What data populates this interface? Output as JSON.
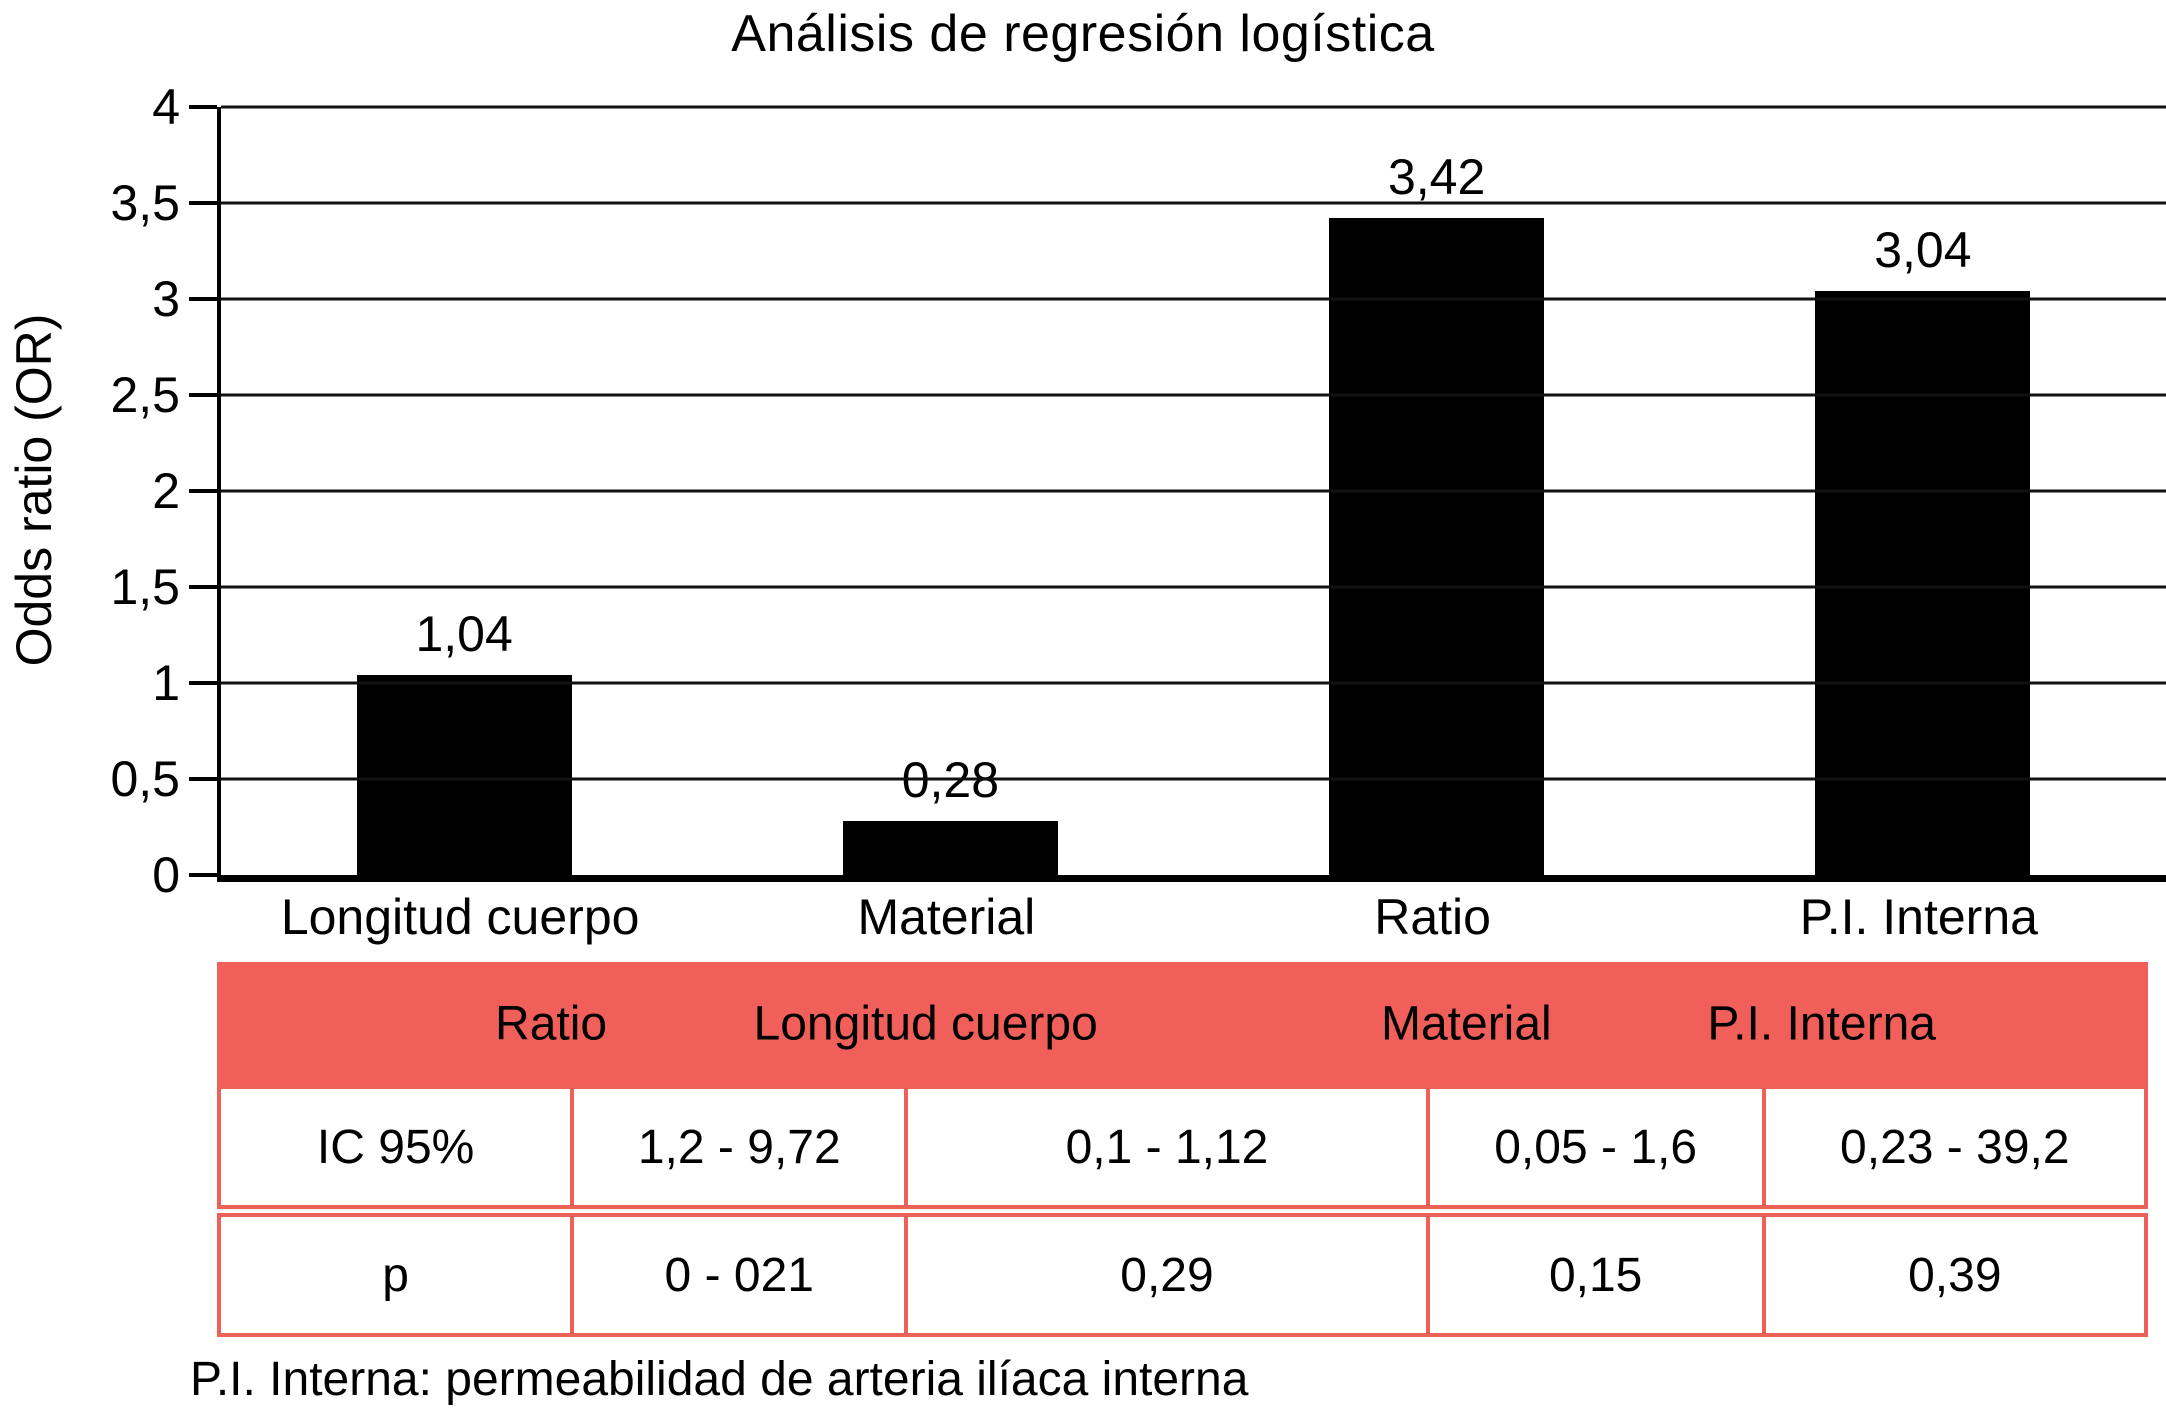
{
  "title": "Análisis de regresión logística",
  "chart_data": {
    "type": "bar",
    "title": "Análisis de regresión logística",
    "xlabel": "",
    "ylabel": "Odds ratio (OR)",
    "ylim": [
      0,
      4
    ],
    "grid": true,
    "legend": "none",
    "bar_color": "#000000",
    "categories": [
      "Longitud cuerpo",
      "Material",
      "Ratio",
      "P.I. Interna"
    ],
    "values": [
      1.04,
      0.28,
      3.42,
      3.04
    ],
    "value_labels": [
      "1,04",
      "0,28",
      "3,42",
      "3,04"
    ],
    "yticks": [
      {
        "value": 0,
        "label": "0"
      },
      {
        "value": 0.5,
        "label": "0,5"
      },
      {
        "value": 1,
        "label": "1"
      },
      {
        "value": 1.5,
        "label": "1,5"
      },
      {
        "value": 2,
        "label": "2"
      },
      {
        "value": 2.5,
        "label": "2,5"
      },
      {
        "value": 3,
        "label": "3"
      },
      {
        "value": 3.5,
        "label": "3,5"
      },
      {
        "value": 4,
        "label": "4"
      }
    ]
  },
  "table": {
    "header_color": "#f05f5a",
    "border_color": "#ed6159",
    "header": [
      "",
      "Ratio",
      "Longitud cuerpo",
      "Material",
      "P.I. Interna"
    ],
    "rows": [
      {
        "label": "IC 95%",
        "cells": [
          "1,2 - 9,72",
          "0,1 - 1,12",
          "0,05 - 1,6",
          "0,23 - 39,2"
        ]
      },
      {
        "label": "p",
        "cells": [
          "0 - 021",
          "0,29",
          "0,15",
          "0,39"
        ]
      }
    ]
  },
  "footnote": "P.I. Interna: permeabilidad de arteria ilíaca interna"
}
